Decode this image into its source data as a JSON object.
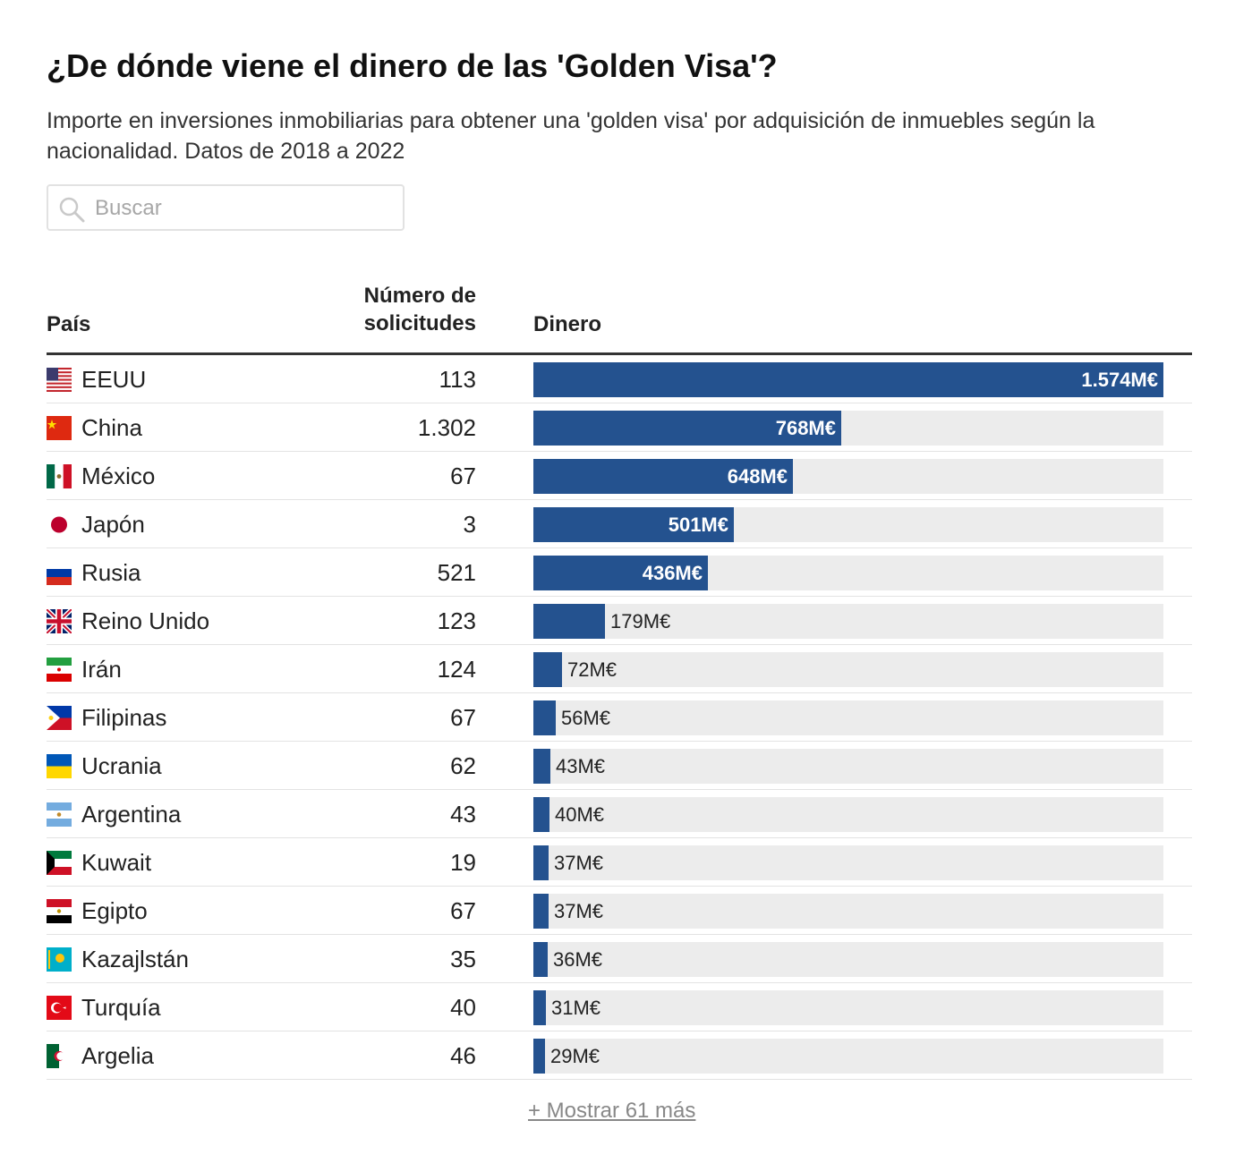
{
  "title": "¿De dónde viene el dinero de las 'Golden Visa'?",
  "subtitle": "Importe en inversiones inmobiliarias para obtener una 'golden visa' por adquisición de inmuebles según la nacionalidad. Datos de 2018 a 2022",
  "search": {
    "placeholder": "Buscar",
    "value": "",
    "icon": "search-icon"
  },
  "columns": {
    "country": "País",
    "count": "Número de solicitudes",
    "money": "Dinero"
  },
  "show_more": "+ Mostrar 61 más",
  "colors": {
    "bar": "#24528f",
    "track": "#ececec",
    "rule": "#333333"
  },
  "chart_data": {
    "type": "bar",
    "unit": "M€",
    "xlim": [
      0,
      1574
    ],
    "bar_color": "#24528f",
    "categories": [
      "EEUU",
      "China",
      "México",
      "Japón",
      "Rusia",
      "Reino Unido",
      "Irán",
      "Filipinas",
      "Ucrania",
      "Argentina",
      "Kuwait",
      "Egipto",
      "Kazajlstán",
      "Turquía",
      "Argelia"
    ],
    "values": [
      1574,
      768,
      648,
      501,
      436,
      179,
      72,
      56,
      43,
      40,
      37,
      37,
      36,
      31,
      29
    ]
  },
  "rows": [
    {
      "country": "EEUU",
      "flag": "us-flag-icon",
      "count": "113",
      "money": 1574,
      "label": "1.574M€"
    },
    {
      "country": "China",
      "flag": "china-flag-icon",
      "count": "1.302",
      "money": 768,
      "label": "768M€"
    },
    {
      "country": "México",
      "flag": "mexico-flag-icon",
      "count": "67",
      "money": 648,
      "label": "648M€"
    },
    {
      "country": "Japón",
      "flag": "japan-flag-icon",
      "count": "3",
      "money": 501,
      "label": "501M€"
    },
    {
      "country": "Rusia",
      "flag": "russia-flag-icon",
      "count": "521",
      "money": 436,
      "label": "436M€"
    },
    {
      "country": "Reino Unido",
      "flag": "uk-flag-icon",
      "count": "123",
      "money": 179,
      "label": "179M€"
    },
    {
      "country": "Irán",
      "flag": "iran-flag-icon",
      "count": "124",
      "money": 72,
      "label": "72M€"
    },
    {
      "country": "Filipinas",
      "flag": "philippines-flag-icon",
      "count": "67",
      "money": 56,
      "label": "56M€"
    },
    {
      "country": "Ucrania",
      "flag": "ukraine-flag-icon",
      "count": "62",
      "money": 43,
      "label": "43M€"
    },
    {
      "country": "Argentina",
      "flag": "argentina-flag-icon",
      "count": "43",
      "money": 40,
      "label": "40M€"
    },
    {
      "country": "Kuwait",
      "flag": "kuwait-flag-icon",
      "count": "19",
      "money": 37,
      "label": "37M€"
    },
    {
      "country": "Egipto",
      "flag": "egypt-flag-icon",
      "count": "67",
      "money": 37,
      "label": "37M€"
    },
    {
      "country": "Kazajlstán",
      "flag": "kazakhstan-flag-icon",
      "count": "35",
      "money": 36,
      "label": "36M€"
    },
    {
      "country": "Turquía",
      "flag": "turkey-flag-icon",
      "count": "40",
      "money": 31,
      "label": "31M€"
    },
    {
      "country": "Argelia",
      "flag": "algeria-flag-icon",
      "count": "46",
      "money": 29,
      "label": "29M€"
    }
  ]
}
